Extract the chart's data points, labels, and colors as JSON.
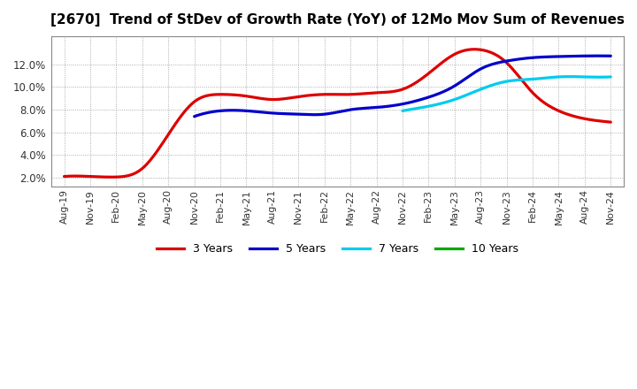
{
  "title": "[2670]  Trend of StDev of Growth Rate (YoY) of 12Mo Mov Sum of Revenues",
  "title_fontsize": 11,
  "background_color": "#ffffff",
  "plot_bg_color": "#ffffff",
  "grid_color": "#aaaaaa",
  "ylim": [
    0.012,
    0.145
  ],
  "yticks": [
    0.02,
    0.04,
    0.06,
    0.08,
    0.1,
    0.12
  ],
  "ytick_labels": [
    "2.0%",
    "4.0%",
    "6.0%",
    "8.0%",
    "10.0%",
    "12.0%"
  ],
  "x_labels": [
    "Aug-19",
    "Nov-19",
    "Feb-20",
    "May-20",
    "Aug-20",
    "Nov-20",
    "Feb-21",
    "May-21",
    "Aug-21",
    "Nov-21",
    "Feb-22",
    "May-22",
    "Aug-22",
    "Nov-22",
    "Feb-23",
    "May-23",
    "Aug-23",
    "Nov-23",
    "Feb-24",
    "May-24",
    "Aug-24",
    "Nov-24"
  ],
  "series": {
    "3 Years": {
      "color": "#dd0000",
      "linewidth": 2.3,
      "data_x": [
        0,
        1,
        2,
        3,
        4,
        5,
        6,
        7,
        8,
        9,
        10,
        11,
        12,
        13,
        14,
        15,
        16,
        17,
        18,
        19,
        20,
        21
      ],
      "data_y": [
        0.021,
        0.021,
        0.0205,
        0.028,
        0.058,
        0.087,
        0.0935,
        0.092,
        0.089,
        0.0915,
        0.0935,
        0.0935,
        0.095,
        0.098,
        0.112,
        0.129,
        0.133,
        0.1215,
        0.095,
        0.079,
        0.072,
        0.069
      ]
    },
    "5 Years": {
      "color": "#0000cc",
      "linewidth": 2.3,
      "data_x": [
        5,
        6,
        7,
        8,
        9,
        10,
        11,
        12,
        13,
        14,
        15,
        16,
        17,
        18,
        19,
        20,
        21
      ],
      "data_y": [
        0.074,
        0.079,
        0.079,
        0.077,
        0.076,
        0.076,
        0.08,
        0.082,
        0.085,
        0.091,
        0.101,
        0.116,
        0.123,
        0.126,
        0.127,
        0.1275,
        0.1275
      ]
    },
    "7 Years": {
      "color": "#00ccee",
      "linewidth": 2.3,
      "data_x": [
        13,
        14,
        15,
        16,
        17,
        18,
        19,
        20,
        21
      ],
      "data_y": [
        0.079,
        0.083,
        0.089,
        0.098,
        0.105,
        0.107,
        0.109,
        0.109,
        0.109
      ]
    },
    "10 Years": {
      "color": "#00aa00",
      "linewidth": 2.3,
      "data_x": [],
      "data_y": []
    }
  },
  "legend_entries": [
    "3 Years",
    "5 Years",
    "7 Years",
    "10 Years"
  ],
  "legend_colors": [
    "#dd0000",
    "#0000cc",
    "#00ccee",
    "#00aa00"
  ]
}
